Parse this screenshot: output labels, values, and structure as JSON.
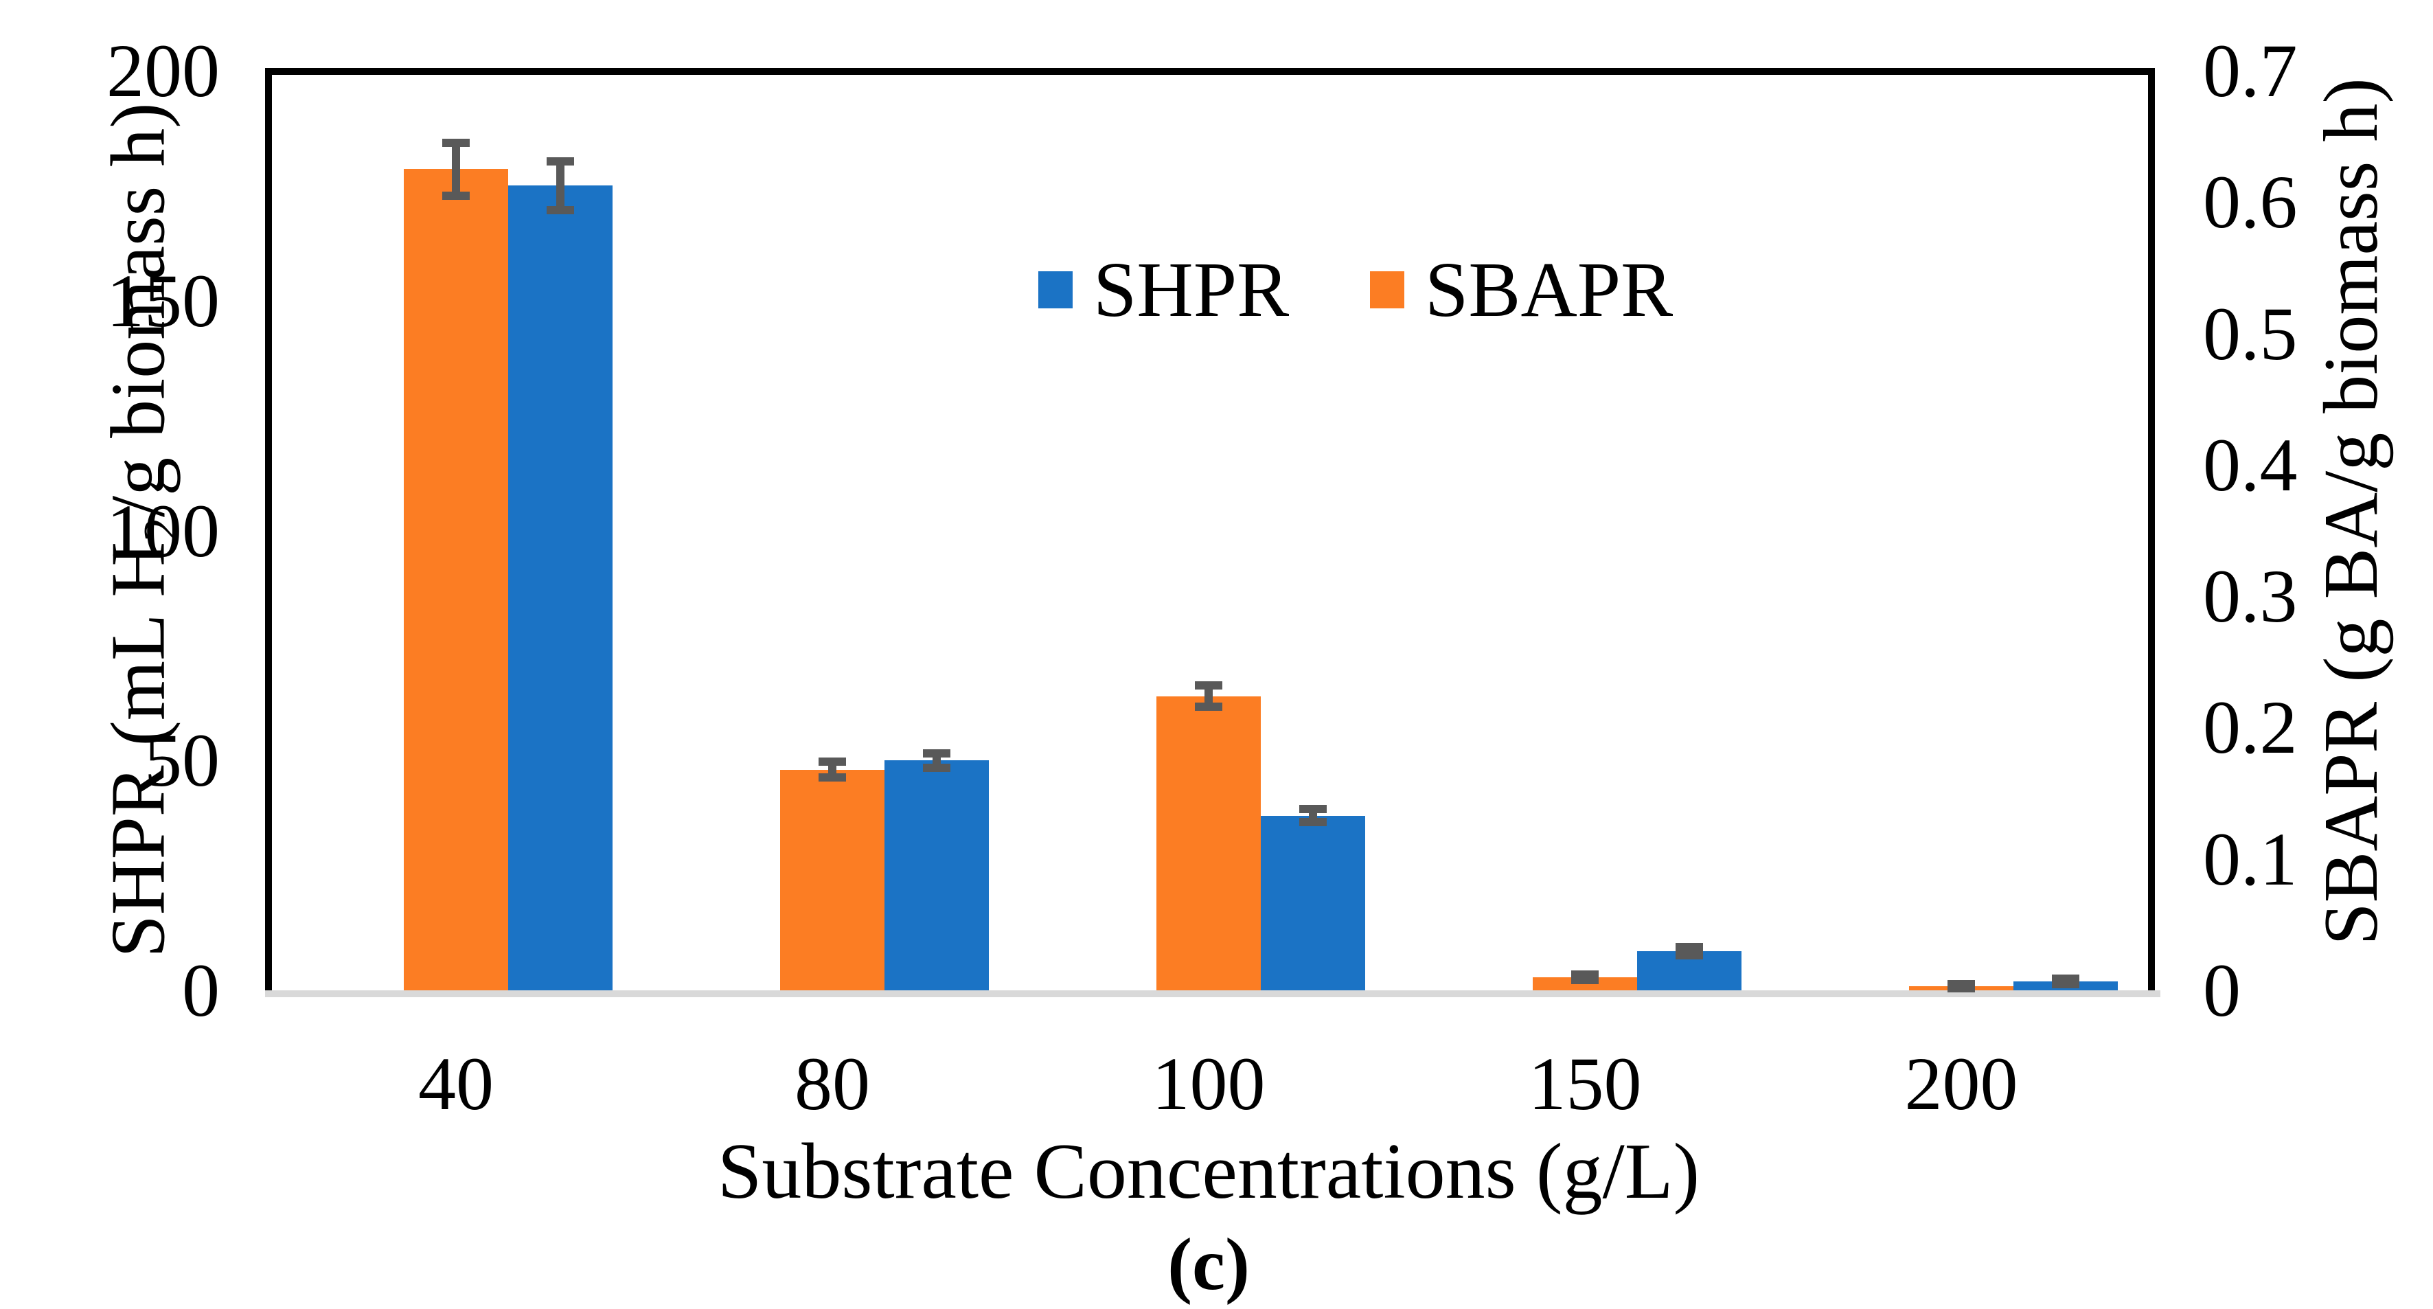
{
  "figure": {
    "caption": "(c)",
    "background": "#FFFFFF"
  },
  "chart_data": {
    "type": "bar",
    "title": "",
    "categories": [
      "40",
      "80",
      "100",
      "150",
      "200"
    ],
    "xlabel": "Substrate Concentrations (g/L)",
    "left_axis": {
      "label": "SHPR (mL H2/g biomass h)",
      "label_parts": [
        "SHPR (mL H",
        "2",
        "/g biomass h)"
      ],
      "ticks": [
        "0",
        "50",
        "100",
        "150",
        "200"
      ],
      "range": [
        0,
        200
      ]
    },
    "right_axis": {
      "label": "SBAPR (g BA/g biomass h)",
      "ticks": [
        "0",
        "0.1",
        "0.2",
        "0.3",
        "0.4",
        "0.5",
        "0.6",
        "0.7"
      ],
      "range": [
        0,
        0.7
      ]
    },
    "series": [
      {
        "name": "SHPR",
        "axis": "left",
        "color": "#1B73C5",
        "values": [
          175,
          50,
          38,
          8.5,
          2
        ],
        "errors": [
          5.3,
          1.6,
          1.4,
          0.9,
          0.6
        ]
      },
      {
        "name": "SBAPR",
        "axis": "right",
        "color": "#FC7D23",
        "values": [
          0.625,
          0.168,
          0.224,
          0.01,
          0.003
        ],
        "errors": [
          0.02,
          0.006,
          0.008,
          0.002,
          0.0015
        ]
      }
    ],
    "cluster_order": [
      "SBAPR",
      "SHPR"
    ],
    "legend": {
      "position": "inside-top-center",
      "items": [
        {
          "label": "SHPR",
          "color": "#1B73C5"
        },
        {
          "label": "SBAPR",
          "color": "#FC7D23"
        }
      ]
    },
    "error_bar_color": "#595959",
    "axis_frame_color": "#000000",
    "baseline_color": "#D9D9D9",
    "grid": false
  }
}
